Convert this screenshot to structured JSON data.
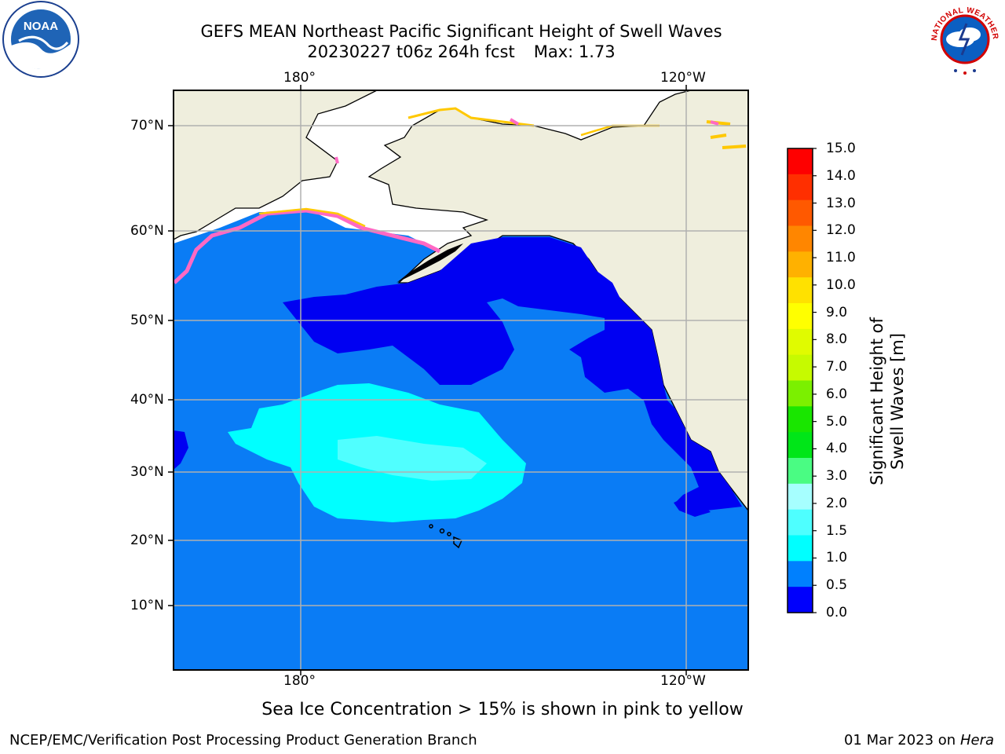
{
  "title": {
    "line1": "GEFS MEAN Northeast Pacific Significant Height of Swell Waves",
    "run": "20230227 t06z 264h fcst",
    "max": "Max: 1.73"
  },
  "logos": {
    "noaa": {
      "text": "NOAA",
      "icon": "noaa-logo-icon"
    },
    "nws": {
      "text": "NATIONAL WEATHER SERVICE",
      "icon": "nws-logo-icon"
    }
  },
  "map": {
    "lon_labels": [
      "180°",
      "120°W"
    ],
    "lat_labels": [
      "70°N",
      "60°N",
      "50°N",
      "40°N",
      "30°N",
      "20°N",
      "10°N"
    ],
    "colors": {
      "land": "#efeedd",
      "ocean_base": "#0a7cf5",
      "ocean_low": "#0000f2",
      "ocean_high": "#00ffff",
      "ocean_high_patch": "#50ffff",
      "grid": "#b0b0b0",
      "ice_pink": "#ff69c4",
      "ice_yellow": "#ffc800"
    }
  },
  "colorbar": {
    "title": "Significant Height of Swell Waves [m]",
    "ticks": [
      "15.0",
      "14.0",
      "13.0",
      "12.0",
      "11.0",
      "10.0",
      "9.0",
      "8.0",
      "7.0",
      "6.0",
      "5.0",
      "4.0",
      "3.0",
      "2.0",
      "1.5",
      "1.0",
      "0.5",
      "0.0"
    ],
    "colors": [
      "#fe0000",
      "#ff2f00",
      "#ff5900",
      "#ff8600",
      "#ffb100",
      "#ffe100",
      "#ffff00",
      "#e0fb00",
      "#c6fa00",
      "#7bf000",
      "#19e600",
      "#00e618",
      "#4afc83",
      "#a6ffff",
      "#4effff",
      "#00ffff",
      "#0080fe",
      "#0000fc"
    ]
  },
  "note": "Sea Ice Concentration > 15% is shown in pink to yellow",
  "footer": {
    "left": "NCEP/EMC/Verification Post Processing Product Generation Branch",
    "date": "01 Mar 2023 on",
    "host": "Hera"
  }
}
